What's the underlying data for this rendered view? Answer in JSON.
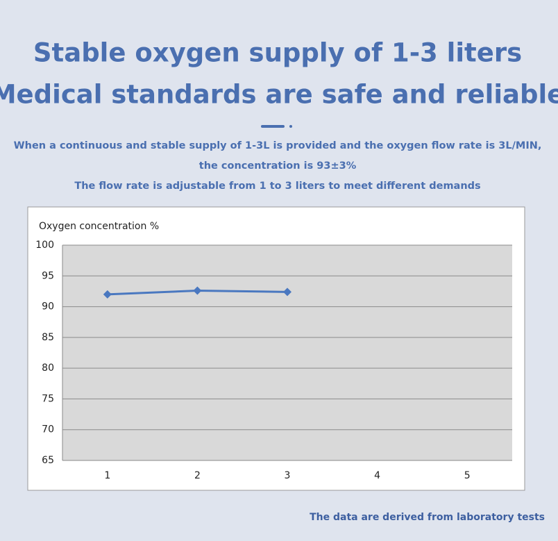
{
  "header": {
    "title_lines": [
      "Stable oxygen supply of 1-3 liters",
      "Medical standards are safe and reliable"
    ],
    "description_lines": [
      "When a continuous and stable supply of 1-3L is provided and the oxygen flow rate is 3L/MIN,",
      "the concentration is 93±3%",
      "The flow rate is adjustable from 1 to 3 liters to meet different demands"
    ]
  },
  "chart_data": {
    "type": "line",
    "y_label": "Oxygen concentration %",
    "categories": [
      "1",
      "2",
      "3",
      "4",
      "5"
    ],
    "series": [
      {
        "name": "Oxygen concentration",
        "color": "#4a78c0",
        "values": [
          92,
          92.6,
          92.4,
          null,
          null
        ]
      }
    ],
    "ylim": [
      65,
      100
    ],
    "yticks": [
      65,
      70,
      75,
      80,
      85,
      90,
      95,
      100
    ],
    "grid": true
  },
  "footer": {
    "note": "The data are derived from laboratory tests"
  }
}
